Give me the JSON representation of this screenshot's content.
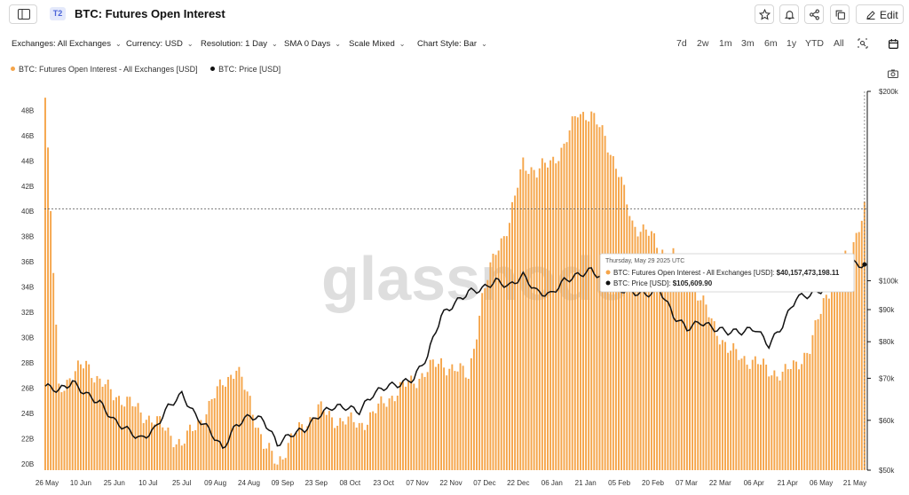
{
  "header": {
    "badge": "T2",
    "title": "BTC: Futures Open Interest",
    "edit_label": "Edit"
  },
  "controls": {
    "exchanges": "Exchanges: All Exchanges",
    "currency": "Currency: USD",
    "resolution": "Resolution: 1 Day",
    "sma": "SMA 0 Days",
    "scale": "Scale Mixed",
    "chart_style": "Chart Style: Bar",
    "ranges": [
      "7d",
      "2w",
      "1m",
      "3m",
      "6m",
      "1y",
      "YTD",
      "All"
    ]
  },
  "colors": {
    "oi": "#f5a54a",
    "price": "#111111"
  },
  "icons": [
    "sidebar-icon",
    "star-icon",
    "bell-icon",
    "share-icon",
    "copy-icon",
    "pencil-icon",
    "zoom-icon",
    "calendar-icon",
    "camera-icon",
    "chevron-down-icon"
  ],
  "watermark": "glassnode",
  "tooltip": {
    "date": "Thursday, May 29 2025 UTC",
    "oi_label": "BTC: Futures Open Interest - All Exchanges [USD]:",
    "oi_value": "$40,157,473,198.11",
    "price_label": "BTC: Price [USD]:",
    "price_value": "$105,609.90"
  },
  "chart_data": {
    "type": "bar",
    "title": "BTC: Futures Open Interest",
    "legend": [
      "BTC: Futures Open Interest - All Exchanges [USD]",
      "BTC: Price [USD]"
    ],
    "x_tick_labels": [
      "26 May",
      "10 Jun",
      "25 Jun",
      "10 Jul",
      "25 Jul",
      "09 Aug",
      "24 Aug",
      "09 Sep",
      "23 Sep",
      "08 Oct",
      "23 Oct",
      "07 Nov",
      "22 Nov",
      "07 Dec",
      "22 Dec",
      "06 Jan",
      "21 Jan",
      "05 Feb",
      "20 Feb",
      "07 Mar",
      "22 Mar",
      "06 Apr",
      "21 Apr",
      "06 May",
      "21 May"
    ],
    "y_left": {
      "scale": "linear",
      "min": 19.5,
      "max": 49.5,
      "ticks": [
        20,
        22,
        24,
        26,
        28,
        30,
        32,
        34,
        36,
        38,
        40,
        42,
        44,
        46,
        48
      ],
      "tick_labels": [
        "20B",
        "22B",
        "24B",
        "26B",
        "28B",
        "30B",
        "32B",
        "34B",
        "36B",
        "38B",
        "40B",
        "42B",
        "44B",
        "46B",
        "48B"
      ]
    },
    "y_right": {
      "scale": "log",
      "min": 50000,
      "max": 200000,
      "ticks": [
        50000,
        60000,
        70000,
        80000,
        90000,
        100000,
        200000
      ],
      "tick_labels": [
        "$50k",
        "$60k",
        "$70k",
        "$80k",
        "$90k",
        "$100k",
        "$200k"
      ]
    },
    "series": [
      {
        "name": "BTC: Futures Open Interest - All Exchanges [USD]",
        "kind": "bar",
        "unit": "B USD",
        "sampling": "every 5 days",
        "values": [
          49.0,
          26.0,
          27.0,
          28.0,
          26.5,
          25.5,
          25.0,
          24.0,
          23.5,
          22.5,
          21.5,
          23.0,
          24.5,
          26.5,
          27.5,
          25.0,
          21.5,
          20.0,
          22.0,
          23.0,
          24.5,
          23.5,
          23.5,
          23.0,
          24.0,
          25.0,
          26.0,
          26.5,
          27.5,
          28.0,
          27.5,
          27.0,
          33.0,
          37.0,
          39.0,
          44.0,
          43.0,
          44.0,
          45.0,
          48.0,
          47.5,
          46.0,
          43.0,
          39.0,
          38.5,
          37.0,
          36.5,
          35.0,
          33.0,
          31.0,
          29.0,
          28.5,
          28.0,
          27.5,
          27.0,
          28.0,
          29.0,
          33.0,
          35.0,
          37.0,
          40.2
        ]
      },
      {
        "name": "BTC: Price [USD]",
        "kind": "line",
        "unit": "USD",
        "sampling": "every 5 days",
        "values": [
          68000,
          67000,
          69000,
          66000,
          64000,
          60000,
          58000,
          56000,
          58000,
          63000,
          66000,
          61000,
          58000,
          54000,
          59000,
          61000,
          60000,
          55000,
          57000,
          58000,
          61000,
          63000,
          63000,
          62000,
          66000,
          68000,
          68500,
          70000,
          76000,
          88000,
          92000,
          96000,
          97000,
          100000,
          98000,
          102000,
          96000,
          95000,
          100000,
          102000,
          104000,
          100000,
          97000,
          96000,
          95000,
          97000,
          88000,
          84000,
          86000,
          84000,
          83000,
          83000,
          84000,
          79000,
          85000,
          94000,
          95000,
          97000,
          103000,
          107000,
          105610
        ]
      }
    ],
    "crosshair_date": "May 29 2025"
  }
}
